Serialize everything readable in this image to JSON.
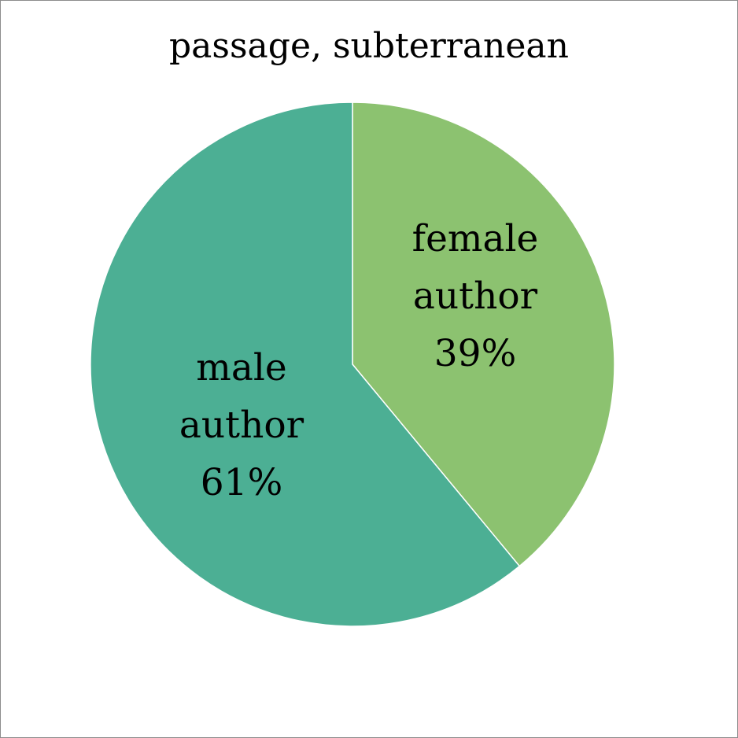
{
  "chart_data": {
    "type": "pie",
    "title": "passage, subterranean",
    "slices": [
      {
        "label_lines": [
          "female",
          "author"
        ],
        "percent_label": "39%",
        "value": 39,
        "color": "#8cc270"
      },
      {
        "label_lines": [
          "male",
          "author"
        ],
        "percent_label": "61%",
        "value": 61,
        "color": "#4caf94"
      }
    ],
    "start_angle": "12 o'clock",
    "direction": "clockwise",
    "legend": "none",
    "data_labels": "inside slices"
  }
}
